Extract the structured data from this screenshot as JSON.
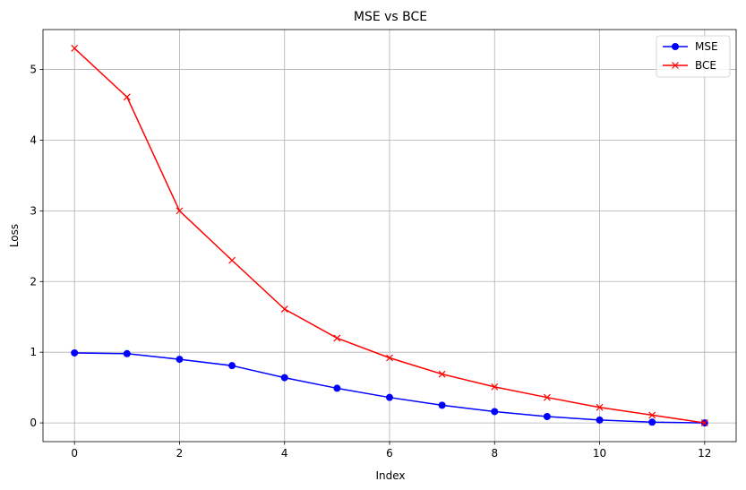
{
  "chart_data": {
    "type": "line",
    "title": "MSE vs BCE",
    "xlabel": "Index",
    "ylabel": "Loss",
    "x": [
      0,
      1,
      2,
      3,
      4,
      5,
      6,
      7,
      8,
      9,
      10,
      11,
      12
    ],
    "xlim": [
      -0.6,
      12.6
    ],
    "ylim": [
      -0.265,
      5.565
    ],
    "xticks": [
      0,
      2,
      4,
      6,
      8,
      10,
      12
    ],
    "yticks": [
      0,
      1,
      2,
      3,
      4,
      5
    ],
    "grid": true,
    "legend_position": "top-right",
    "series": [
      {
        "name": "MSE",
        "color": "#0000ff",
        "marker": "circle",
        "values": [
          0.99,
          0.98,
          0.9,
          0.81,
          0.64,
          0.49,
          0.36,
          0.25,
          0.16,
          0.09,
          0.04,
          0.01,
          0.0
        ]
      },
      {
        "name": "BCE",
        "color": "#ff0000",
        "marker": "x",
        "values": [
          5.3,
          4.61,
          3.0,
          2.3,
          1.61,
          1.2,
          0.92,
          0.69,
          0.51,
          0.36,
          0.22,
          0.11,
          0.0
        ]
      }
    ]
  }
}
